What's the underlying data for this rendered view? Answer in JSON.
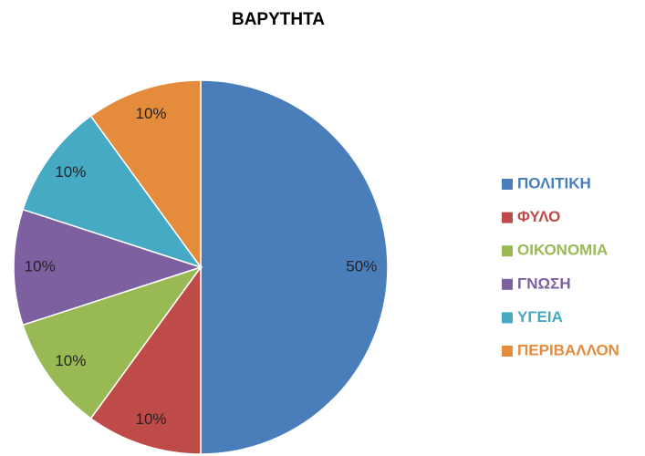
{
  "chart_data": {
    "type": "pie",
    "title": "ΒΑΡΥΤΗΤΑ",
    "categories": [
      "ΠΟΛΙΤΙΚΗ",
      "ΦΥΛΟ",
      "ΟΙΚΟΝΟΜΙΑ",
      "ΓΝΩΣΗ",
      "ΥΓΕΙΑ",
      "ΠΕΡΙΒΑΛΛΟΝ"
    ],
    "values": [
      50,
      10,
      10,
      10,
      10,
      10
    ],
    "value_labels": [
      "50%",
      "10%",
      "10%",
      "10%",
      "10%",
      "10%"
    ],
    "colors": [
      "#4a7ebb",
      "#be4b48",
      "#98b954",
      "#7d60a0",
      "#46aac5",
      "#e48b3c"
    ],
    "legend": "right"
  }
}
